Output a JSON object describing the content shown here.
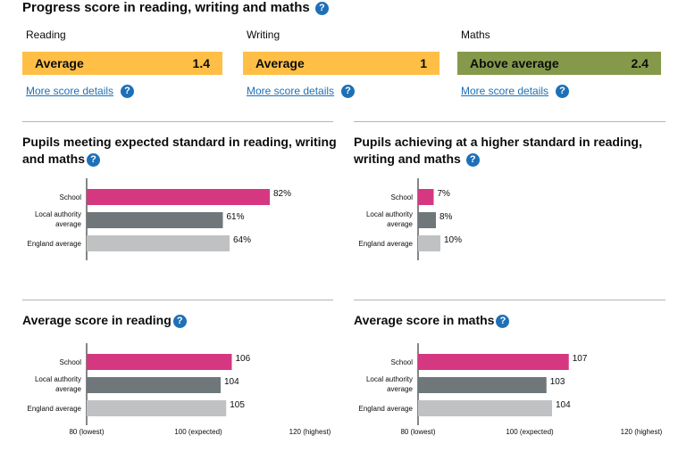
{
  "page": {
    "title": "Progress score in reading, writing and maths",
    "help_icon": "?"
  },
  "progress": [
    {
      "label": "Reading",
      "band": "Average",
      "score": "1.4",
      "link": "More score details",
      "color": "#ffbf47"
    },
    {
      "label": "Writing",
      "band": "Average",
      "score": "1",
      "link": "More score details",
      "color": "#ffbf47"
    },
    {
      "label": "Maths",
      "band": "Above average",
      "score": "2.4",
      "link": "More score details",
      "color": "#85994b"
    }
  ],
  "colors": {
    "school": "#d53880",
    "local": "#6f777b",
    "england": "#bfc1c3",
    "help": "#1d70b8"
  },
  "sections": [
    {
      "title_line1": "Pupils meeting expected standard in reading, writing",
      "title_line2": "and maths"
    },
    {
      "title_line1": "Pupils achieving at a higher standard in reading,",
      "title_line2": "writing and maths"
    },
    {
      "title_line1": "Average score in reading",
      "title_line2": ""
    },
    {
      "title_line1": "Average score in maths",
      "title_line2": ""
    }
  ],
  "chart_data": [
    {
      "type": "bar",
      "orientation": "horizontal",
      "title": "Pupils meeting expected standard in reading, writing and maths",
      "categories": [
        "School",
        "Local authority average",
        "England average"
      ],
      "category_lines": [
        [
          "School"
        ],
        [
          "Local authority",
          "average"
        ],
        [
          "England average"
        ]
      ],
      "values": [
        82,
        61,
        64
      ],
      "labels": [
        "82%",
        "61%",
        "64%"
      ],
      "xlim": [
        0,
        100
      ],
      "ticks": []
    },
    {
      "type": "bar",
      "orientation": "horizontal",
      "title": "Pupils achieving at a higher standard in reading, writing and maths",
      "categories": [
        "School",
        "Local authority average",
        "England average"
      ],
      "category_lines": [
        [
          "School"
        ],
        [
          "Local authority",
          "average"
        ],
        [
          "England average"
        ]
      ],
      "values": [
        7,
        8,
        10
      ],
      "labels": [
        "7%",
        "8%",
        "10%"
      ],
      "xlim": [
        0,
        100
      ],
      "ticks": []
    },
    {
      "type": "bar",
      "orientation": "horizontal",
      "title": "Average score in reading",
      "categories": [
        "School",
        "Local authority average",
        "England average"
      ],
      "category_lines": [
        [
          "School"
        ],
        [
          "Local authority",
          "average"
        ],
        [
          "England average"
        ]
      ],
      "values": [
        106,
        104,
        105
      ],
      "labels": [
        "106",
        "104",
        "105"
      ],
      "xlim": [
        80,
        120
      ],
      "ticks": [
        80,
        100,
        120
      ],
      "tick_labels": [
        "80 (lowest)",
        "100 (expected)",
        "120 (highest)"
      ]
    },
    {
      "type": "bar",
      "orientation": "horizontal",
      "title": "Average score in maths",
      "categories": [
        "School",
        "Local authority average",
        "England average"
      ],
      "category_lines": [
        [
          "School"
        ],
        [
          "Local authority",
          "average"
        ],
        [
          "England average"
        ]
      ],
      "values": [
        107,
        103,
        104
      ],
      "labels": [
        "107",
        "103",
        "104"
      ],
      "xlim": [
        80,
        120
      ],
      "ticks": [
        80,
        100,
        120
      ],
      "tick_labels": [
        "80 (lowest)",
        "100 (expected)",
        "120 (highest)"
      ]
    }
  ]
}
